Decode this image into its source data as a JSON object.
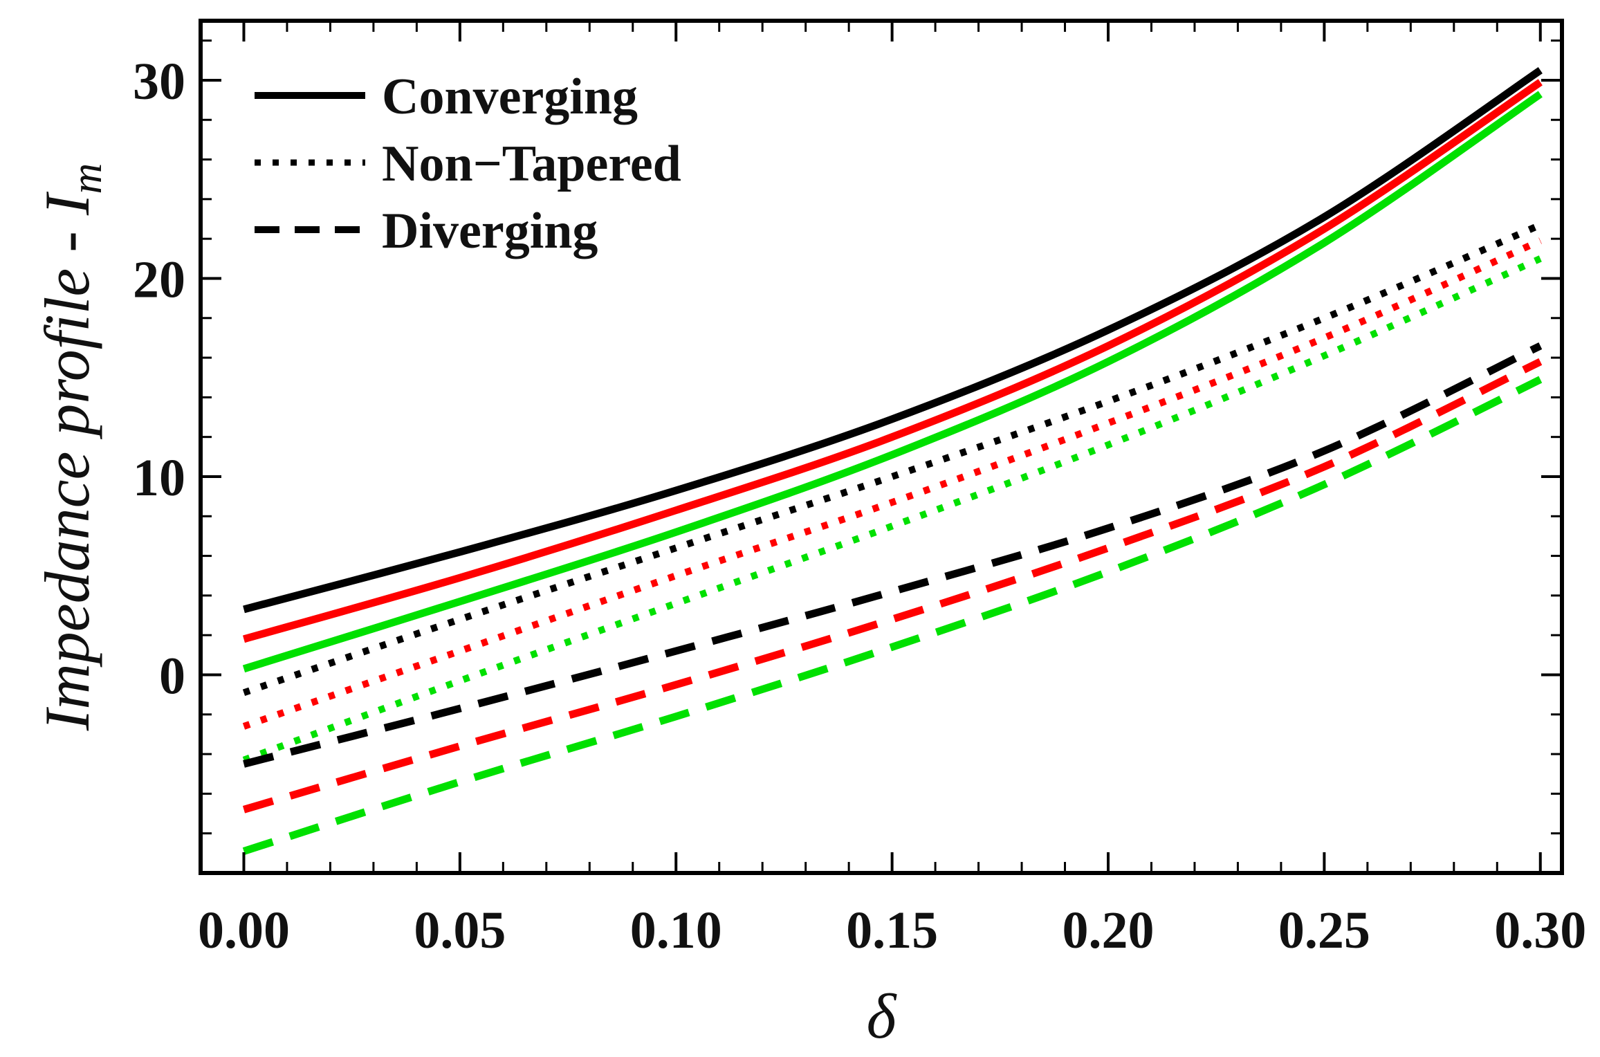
{
  "chart_data": {
    "type": "line",
    "title": "",
    "xlabel": "δ",
    "ylabel": "Impedance profile - I",
    "ylabel_subscript": "m",
    "xlim": [
      -0.01,
      0.305
    ],
    "ylim": [
      -10,
      33
    ],
    "xticks": [
      0.0,
      0.05,
      0.1,
      0.15,
      0.2,
      0.25,
      0.3
    ],
    "xtick_labels": [
      "0.00",
      "0.05",
      "0.10",
      "0.15",
      "0.20",
      "0.25",
      "0.30"
    ],
    "yticks": [
      0,
      10,
      20,
      30
    ],
    "ytick_labels": [
      "0",
      "10",
      "20",
      "30"
    ],
    "grid": false,
    "legend_position": "top-left",
    "legend": [
      {
        "label": "Converging",
        "style": "solid"
      },
      {
        "label": "Non−Tapered",
        "style": "dotted"
      },
      {
        "label": "Diverging",
        "style": "dashed"
      }
    ],
    "x": [
      0.0,
      0.05,
      0.1,
      0.15,
      0.2,
      0.25,
      0.3
    ],
    "series": [
      {
        "name": "Converging (black)",
        "group": "Converging",
        "color": "#000000",
        "style": "solid",
        "values": [
          3.3,
          6.2,
          9.3,
          12.9,
          17.4,
          23.1,
          30.5
        ]
      },
      {
        "name": "Converging (red)",
        "group": "Converging",
        "color": "#ff0000",
        "style": "solid",
        "values": [
          1.8,
          4.9,
          8.3,
          12.0,
          16.6,
          22.5,
          29.9
        ]
      },
      {
        "name": "Converging (green)",
        "group": "Converging",
        "color": "#00e000",
        "style": "solid",
        "values": [
          0.3,
          3.7,
          7.2,
          11.1,
          15.8,
          21.8,
          29.3
        ]
      },
      {
        "name": "Non-Tapered (black)",
        "group": "Non-Tapered",
        "color": "#000000",
        "style": "dotted",
        "values": [
          -0.9,
          2.8,
          6.4,
          10.0,
          13.8,
          18.0,
          22.7
        ]
      },
      {
        "name": "Non-Tapered (red)",
        "group": "Non-Tapered",
        "color": "#ff0000",
        "style": "dotted",
        "values": [
          -2.6,
          1.2,
          5.0,
          8.7,
          12.7,
          17.0,
          21.9
        ]
      },
      {
        "name": "Non-Tapered (green)",
        "group": "Non-Tapered",
        "color": "#00e000",
        "style": "dotted",
        "values": [
          -4.3,
          -0.3,
          3.6,
          7.5,
          11.6,
          16.1,
          21.0
        ]
      },
      {
        "name": "Diverging (black)",
        "group": "Diverging",
        "color": "#000000",
        "style": "dashed",
        "values": [
          -4.5,
          -1.7,
          1.2,
          4.2,
          7.4,
          11.3,
          16.6
        ]
      },
      {
        "name": "Diverging (red)",
        "group": "Diverging",
        "color": "#ff0000",
        "style": "dashed",
        "values": [
          -6.8,
          -3.6,
          -0.5,
          2.8,
          6.4,
          10.5,
          15.8
        ]
      },
      {
        "name": "Diverging (green)",
        "group": "Diverging",
        "color": "#00e000",
        "style": "dashed",
        "values": [
          -8.9,
          -5.4,
          -2.1,
          1.4,
          5.2,
          9.6,
          14.9
        ]
      }
    ]
  }
}
